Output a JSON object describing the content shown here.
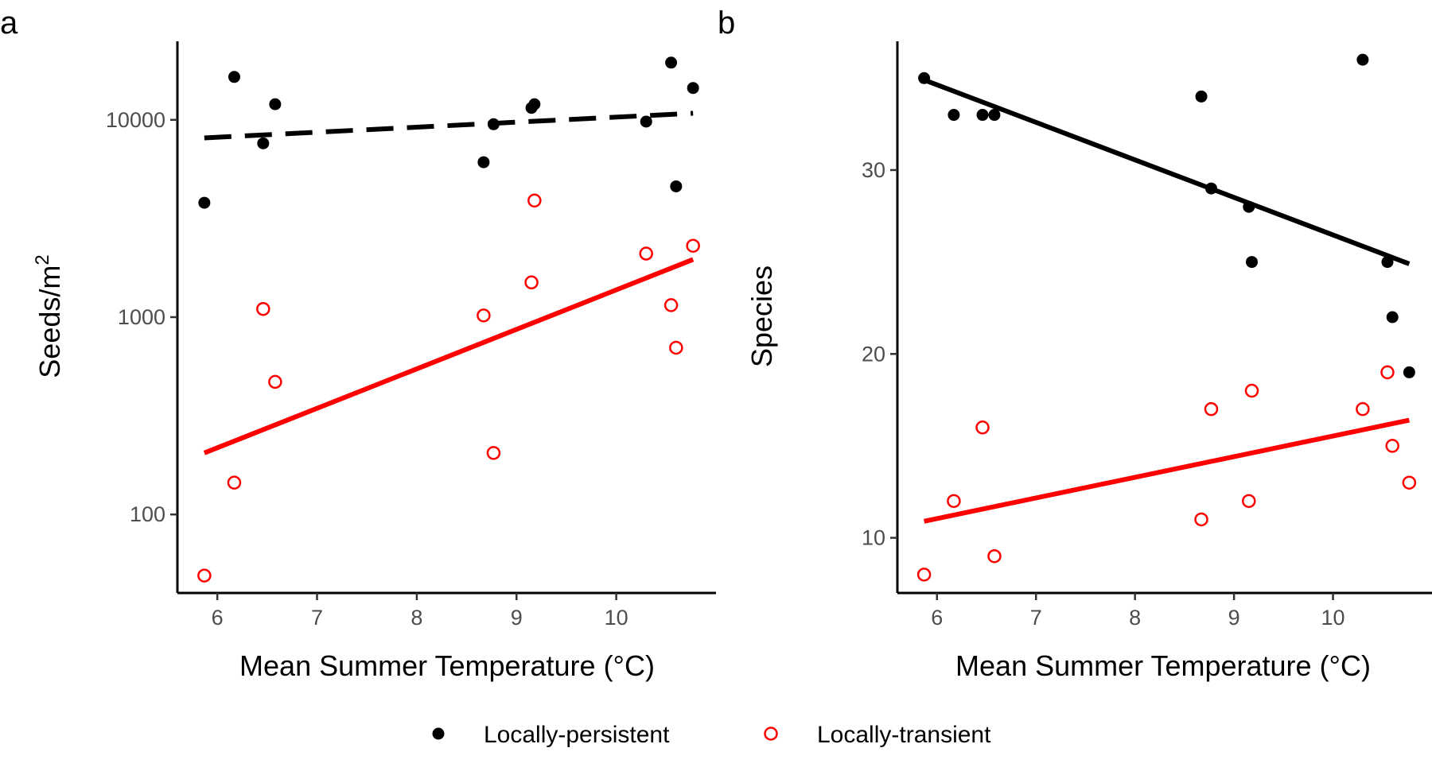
{
  "legend": {
    "items": [
      {
        "label": "Locally-persistent",
        "color": "#000000",
        "marker": "filled-circle"
      },
      {
        "label": "Locally-transient",
        "color": "#ff0000",
        "marker": "open-circle"
      }
    ]
  },
  "chart_data": [
    {
      "panel_label": "a",
      "type": "scatter",
      "xlabel": "Mean Summer Temperature (°C)",
      "ylabel_main": "Seeds/m",
      "ylabel_sup": "2",
      "yscale": "log",
      "xlim": [
        5.6,
        11.0
      ],
      "ylim": [
        40,
        25000
      ],
      "x_ticks": [
        6,
        7,
        8,
        9,
        10
      ],
      "x_tick_labels": [
        "6",
        "7",
        "8",
        "9",
        "10"
      ],
      "y_ticks": [
        100,
        1000,
        10000
      ],
      "y_tick_labels": [
        "100",
        "1000",
        "10000"
      ],
      "grid": false,
      "series": [
        {
          "name": "Locally-persistent",
          "color": "#000000",
          "marker": "filled",
          "points": [
            [
              5.87,
              3800
            ],
            [
              6.17,
              16500
            ],
            [
              6.46,
              7600
            ],
            [
              6.58,
              12000
            ],
            [
              8.67,
              6100
            ],
            [
              8.77,
              9500
            ],
            [
              9.15,
              11500
            ],
            [
              9.18,
              12000
            ],
            [
              10.3,
              9800
            ],
            [
              10.55,
              19500
            ],
            [
              10.6,
              4600
            ],
            [
              10.77,
              14500
            ]
          ],
          "fit": {
            "x": [
              5.87,
              10.77
            ],
            "y": [
              8100,
              10800
            ],
            "style": "dashed"
          }
        },
        {
          "name": "Locally-transient",
          "color": "#ff0000",
          "marker": "open",
          "points": [
            [
              5.87,
              49
            ],
            [
              6.17,
              145
            ],
            [
              6.46,
              1100
            ],
            [
              6.58,
              470
            ],
            [
              8.67,
              1020
            ],
            [
              8.77,
              205
            ],
            [
              9.15,
              1500
            ],
            [
              9.18,
              3900
            ],
            [
              10.3,
              2100
            ],
            [
              10.55,
              1150
            ],
            [
              10.6,
              700
            ],
            [
              10.77,
              2300
            ]
          ],
          "fit": {
            "x": [
              5.87,
              10.77
            ],
            "y": [
              205,
              1960
            ],
            "style": "solid"
          }
        }
      ]
    },
    {
      "panel_label": "b",
      "type": "scatter",
      "xlabel": "Mean Summer Temperature (°C)",
      "ylabel_main": "Species",
      "ylabel_sup": "",
      "yscale": "linear",
      "xlim": [
        5.6,
        11.0
      ],
      "ylim": [
        7,
        37
      ],
      "x_ticks": [
        6,
        7,
        8,
        9,
        10
      ],
      "x_tick_labels": [
        "6",
        "7",
        "8",
        "9",
        "10"
      ],
      "y_ticks": [
        10,
        20,
        30
      ],
      "y_tick_labels": [
        "10",
        "20",
        "30"
      ],
      "grid": false,
      "series": [
        {
          "name": "Locally-persistent",
          "color": "#000000",
          "marker": "filled",
          "points": [
            [
              5.87,
              35
            ],
            [
              6.17,
              33
            ],
            [
              6.46,
              33
            ],
            [
              6.58,
              33
            ],
            [
              8.67,
              34
            ],
            [
              8.77,
              29
            ],
            [
              9.15,
              28
            ],
            [
              9.18,
              25
            ],
            [
              10.3,
              36
            ],
            [
              10.55,
              25
            ],
            [
              10.6,
              22
            ],
            [
              10.77,
              19
            ]
          ],
          "fit": {
            "x": [
              5.87,
              10.77
            ],
            "y": [
              34.9,
              24.9
            ],
            "style": "solid"
          }
        },
        {
          "name": "Locally-transient",
          "color": "#ff0000",
          "marker": "open",
          "points": [
            [
              5.87,
              8
            ],
            [
              6.17,
              12
            ],
            [
              6.46,
              16
            ],
            [
              6.58,
              9
            ],
            [
              8.67,
              11
            ],
            [
              8.77,
              17
            ],
            [
              9.15,
              12
            ],
            [
              9.18,
              18
            ],
            [
              10.3,
              17
            ],
            [
              10.55,
              19
            ],
            [
              10.6,
              15
            ],
            [
              10.77,
              13
            ]
          ],
          "fit": {
            "x": [
              5.87,
              10.77
            ],
            "y": [
              10.9,
              16.4
            ],
            "style": "solid"
          }
        }
      ]
    }
  ]
}
